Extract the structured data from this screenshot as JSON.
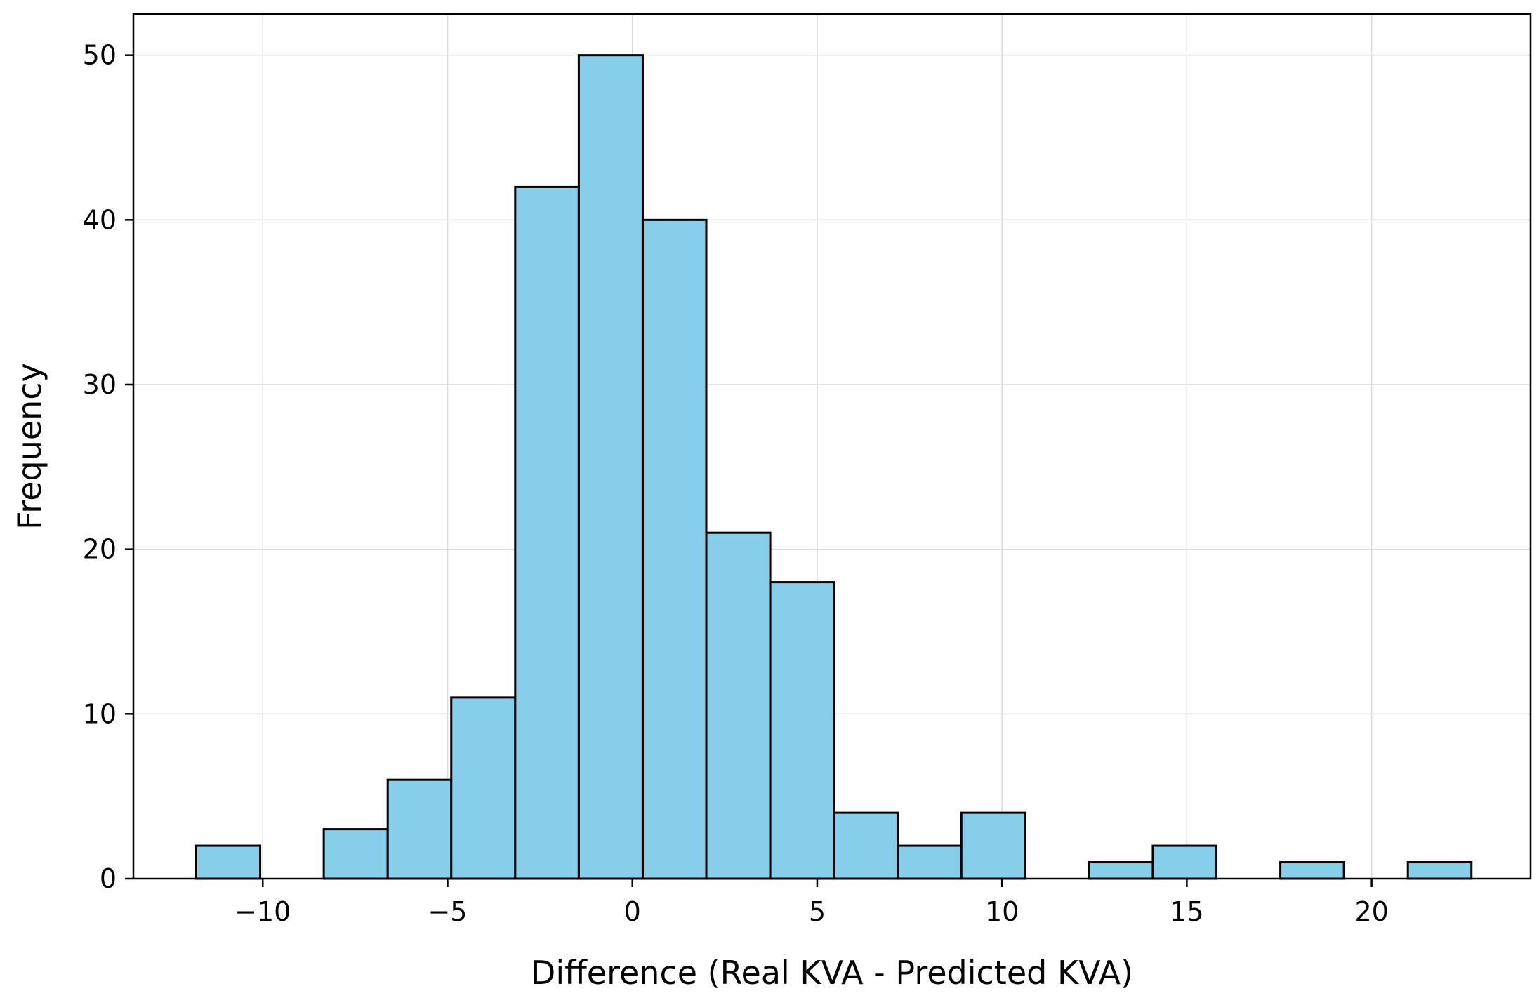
{
  "chart_data": {
    "type": "bar",
    "subtype": "histogram",
    "title": "",
    "xlabel": "Difference (Real KVA - Predicted KVA)",
    "ylabel": "Frequency",
    "xlim": [
      -13.5,
      24.3
    ],
    "ylim": [
      0,
      52.5
    ],
    "grid": true,
    "xticks": [
      -10,
      -5,
      0,
      5,
      10,
      15,
      20
    ],
    "xtick_labels": [
      "−10",
      "−5",
      "0",
      "5",
      "10",
      "15",
      "20"
    ],
    "yticks": [
      0,
      10,
      20,
      30,
      40,
      50
    ],
    "ytick_labels": [
      "0",
      "10",
      "20",
      "30",
      "40",
      "50"
    ],
    "bin_edges": [
      -11.8,
      -10.07,
      -8.35,
      -6.62,
      -4.9,
      -3.17,
      -1.45,
      0.28,
      2.0,
      3.73,
      5.45,
      7.18,
      8.9,
      10.63,
      12.35,
      14.08,
      15.8,
      17.53,
      19.25,
      20.98,
      22.7
    ],
    "counts": [
      2,
      0,
      3,
      6,
      11,
      42,
      50,
      40,
      21,
      18,
      4,
      2,
      4,
      0,
      1,
      2,
      0,
      1,
      0,
      1
    ],
    "bar_color": "#87CEEB",
    "edge_color": "#000000"
  }
}
